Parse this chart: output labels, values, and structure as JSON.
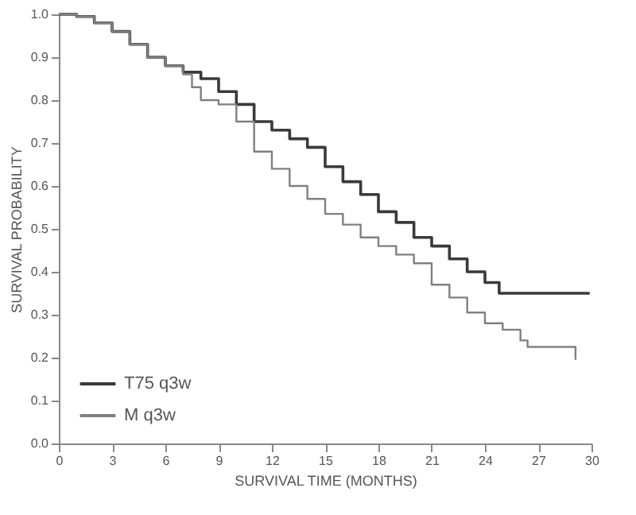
{
  "chart_data": {
    "type": "step",
    "xlabel": "SURVIVAL TIME (MONTHS)",
    "ylabel": "SURVIVAL PROBABILITY",
    "xlim": [
      0,
      30
    ],
    "xticks": [
      0,
      3,
      6,
      9,
      12,
      15,
      18,
      21,
      24,
      27,
      30
    ],
    "ylim": [
      0,
      1
    ],
    "yticks": [
      {
        "value": 0,
        "label": "0.0"
      },
      0.1,
      0.2,
      0.3,
      0.4,
      0.5,
      0.6,
      0.7,
      0.8,
      0.9,
      {
        "value": 1,
        "label": "1.0"
      }
    ],
    "grid": false,
    "legend": "bottom left",
    "marker": "none",
    "series": [
      {
        "name": "T75 q3w",
        "color": "#3a3a3a",
        "x": [
          0,
          1,
          2,
          3,
          4,
          5,
          6,
          7,
          8,
          9,
          10,
          11,
          12,
          13,
          14,
          15,
          16,
          17,
          18,
          19,
          20,
          21,
          22,
          23,
          24,
          24.8,
          29.9
        ],
        "values": [
          1,
          0.995,
          0.98,
          0.96,
          0.93,
          0.9,
          0.88,
          0.865,
          0.85,
          0.82,
          0.79,
          0.75,
          0.73,
          0.71,
          0.69,
          0.645,
          0.61,
          0.58,
          0.54,
          0.515,
          0.48,
          0.46,
          0.43,
          0.4,
          0.375,
          0.35,
          0.35
        ]
      },
      {
        "name": "M q3w",
        "color": "#808080",
        "x": [
          0,
          1,
          2,
          3,
          4,
          5,
          6,
          7,
          7.5,
          8,
          9,
          10,
          11,
          12,
          13,
          14,
          15,
          16,
          17,
          18,
          19,
          20,
          21,
          22,
          23,
          24,
          25,
          26,
          26.4,
          29.1,
          29.1
        ],
        "values": [
          1,
          0.995,
          0.98,
          0.96,
          0.93,
          0.9,
          0.88,
          0.86,
          0.83,
          0.8,
          0.79,
          0.75,
          0.68,
          0.64,
          0.6,
          0.57,
          0.535,
          0.51,
          0.48,
          0.46,
          0.44,
          0.42,
          0.37,
          0.34,
          0.305,
          0.28,
          0.265,
          0.24,
          0.225,
          0.225,
          0.195
        ]
      }
    ]
  }
}
